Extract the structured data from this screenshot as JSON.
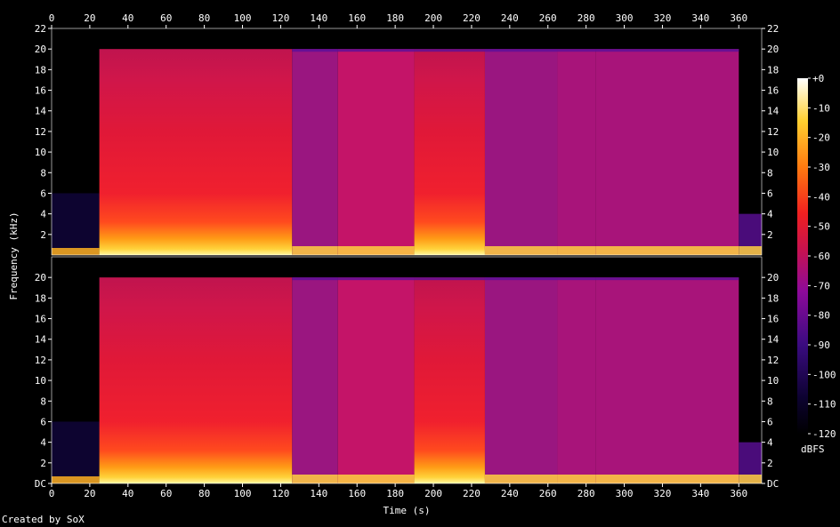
{
  "chart_data": {
    "type": "heatmap",
    "xlabel": "Time (s)",
    "ylabel": "Frequency (kHz)",
    "xlim": [
      0,
      372
    ],
    "ylim": [
      0,
      22
    ],
    "x_ticks": [
      0,
      20,
      40,
      60,
      80,
      100,
      120,
      140,
      160,
      180,
      200,
      220,
      240,
      260,
      280,
      300,
      320,
      340,
      360
    ],
    "y_ticks_top_channel": [
      "2",
      "4",
      "6",
      "8",
      "10",
      "12",
      "14",
      "16",
      "18",
      "20",
      "22"
    ],
    "y_ticks_bottom_channel": [
      "DC",
      "2",
      "4",
      "6",
      "8",
      "10",
      "12",
      "14",
      "16",
      "18",
      "20"
    ],
    "channels": 2,
    "colorbar": {
      "label": "dBFS",
      "ticks": [
        "+0",
        "-10",
        "-20",
        "-30",
        "-40",
        "-50",
        "-60",
        "-70",
        "-80",
        "-90",
        "-100",
        "-110",
        "-120"
      ],
      "range": [
        -120,
        0
      ]
    },
    "content_cutoff_khz": 20,
    "regions": [
      {
        "start": 0,
        "end": 25,
        "level": "quiet",
        "cutoff_khz": 6
      },
      {
        "start": 25,
        "end": 126,
        "level": "loud",
        "cutoff_khz": 20
      },
      {
        "start": 126,
        "end": 150,
        "level": "medium",
        "cutoff_khz": 20
      },
      {
        "start": 150,
        "end": 190,
        "level": "mixed",
        "cutoff_khz": 20
      },
      {
        "start": 190,
        "end": 227,
        "level": "loud",
        "cutoff_khz": 20
      },
      {
        "start": 227,
        "end": 265,
        "level": "medium",
        "cutoff_khz": 20
      },
      {
        "start": 265,
        "end": 285,
        "level": "medium-low",
        "cutoff_khz": 20
      },
      {
        "start": 285,
        "end": 360,
        "level": "medium-low",
        "cutoff_khz": 20
      },
      {
        "start": 360,
        "end": 372,
        "level": "fade",
        "cutoff_khz": 4
      }
    ]
  },
  "footer": "Created by SoX"
}
